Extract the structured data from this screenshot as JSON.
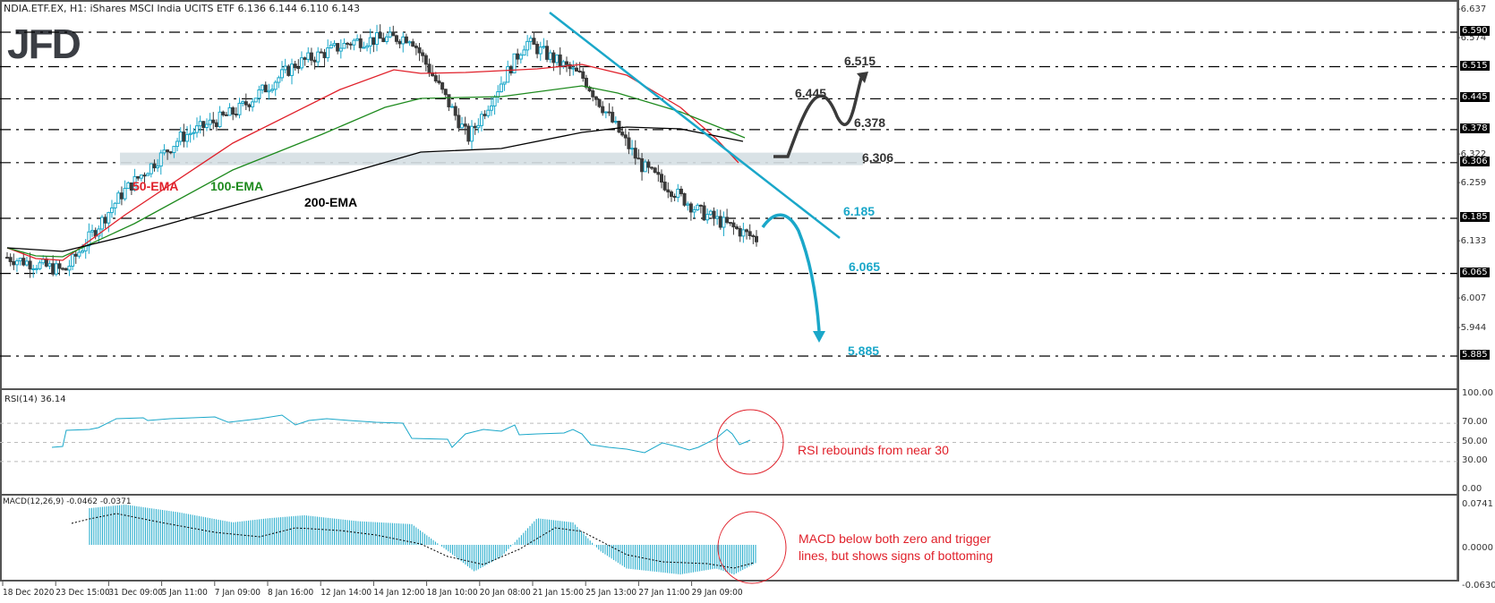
{
  "header": {
    "title": "NDIA.ETF.EX, H1:  iShares MSCI India UCITS ETF  6.136 6.144 6.110 6.143",
    "logo": "JFD"
  },
  "price_axis": {
    "ticks": [
      "6.637",
      "6.574",
      "6.322",
      "6.259",
      "6.133",
      "6.007",
      "5.944"
    ],
    "tags": [
      "6.590",
      "6.515",
      "6.445",
      "6.378",
      "6.306",
      "6.185",
      "6.065",
      "5.885"
    ]
  },
  "annotations": {
    "ema50": "50-EMA",
    "ema100": "100-EMA",
    "ema200": "200-EMA",
    "levels": {
      "l6515": "6.515",
      "l6445": "6.445",
      "l6378": "6.378",
      "l6306": "6.306",
      "l6185": "6.185",
      "l6065": "6.065",
      "l5885": "5.885"
    },
    "rsi_note": "RSI rebounds from near 30",
    "macd_note_1": "MACD below both zero and trigger",
    "macd_note_2": "lines, but shows signs of bottoming"
  },
  "rsi": {
    "label": "RSI(14) 36.14",
    "ticks": [
      "100.00",
      "70.00",
      "50.00",
      "30.00",
      "0.00"
    ]
  },
  "macd": {
    "label": "MACD(12,26,9) -0.0462 -0.0371",
    "ticks": [
      "0.0741",
      "0.0000",
      "-0.0630"
    ]
  },
  "dates": [
    "18 Dec 2020",
    "23 Dec 15:00",
    "31 Dec 09:00",
    "5 Jan 11:00",
    "7 Jan 09:00",
    "8 Jan 16:00",
    "12 Jan 14:00",
    "14 Jan 12:00",
    "18 Jan 10:00",
    "20 Jan 08:00",
    "21 Jan 15:00",
    "25 Jan 13:00",
    "27 Jan 11:00",
    "29 Jan 09:00"
  ],
  "colors": {
    "bull": "#1aa7c9",
    "bear": "#3a3a3a",
    "ema50": "#e0202a",
    "ema100": "#1e8a1e",
    "ema200": "#000000",
    "trend": "#1aa7c9",
    "zone": "#d5dfe3",
    "note": "#e0202a"
  },
  "chart_data": [
    {
      "type": "candlestick",
      "title": "NDIA.ETF.EX, H1: iShares MSCI India UCITS ETF",
      "ohlc_last": {
        "open": 6.136,
        "high": 6.144,
        "low": 6.11,
        "close": 6.143
      },
      "ylim": [
        5.85,
        6.65
      ],
      "y_ticks": [
        6.637,
        6.574,
        6.322,
        6.259,
        6.133,
        6.007,
        5.944
      ],
      "horizontal_levels": [
        6.59,
        6.515,
        6.445,
        6.378,
        6.306,
        6.185,
        6.065,
        5.885
      ],
      "support_zone": [
        6.295,
        6.322
      ],
      "x": [
        "18 Dec 2020",
        "23 Dec 15:00",
        "31 Dec 09:00",
        "5 Jan 11:00",
        "7 Jan 09:00",
        "8 Jan 16:00",
        "12 Jan 14:00",
        "14 Jan 12:00",
        "18 Jan 10:00",
        "20 Jan 08:00",
        "21 Jan 15:00",
        "25 Jan 13:00",
        "27 Jan 11:00",
        "29 Jan 09:00"
      ],
      "approx_close_path": [
        6.1,
        6.07,
        6.24,
        6.36,
        6.42,
        6.52,
        6.57,
        6.58,
        6.36,
        6.57,
        6.49,
        6.3,
        6.2,
        6.14
      ],
      "series": [
        {
          "name": "50-EMA",
          "color": "#e0202a"
        },
        {
          "name": "100-EMA",
          "color": "#1e8a1e"
        },
        {
          "name": "200-EMA",
          "color": "#000000"
        }
      ],
      "annotations": [
        "downtrend line from 6.637 peak",
        "bullish path 6.306 -> 6.445 -> 6.378 -> 6.515",
        "bearish path 6.185 -> 6.065 -> 5.885"
      ]
    },
    {
      "type": "line",
      "title": "RSI(14) 36.14",
      "ylim": [
        0,
        100
      ],
      "y_ticks": [
        100,
        70,
        50,
        30,
        0
      ],
      "levels": [
        70,
        50,
        30
      ],
      "last_value": 36.14
    },
    {
      "type": "bar",
      "title": "MACD(12,26,9) -0.0462 -0.0371",
      "ylim": [
        -0.063,
        0.0741
      ],
      "y_ticks": [
        0.0741,
        0.0,
        -0.063
      ],
      "macd": -0.0462,
      "signal": -0.0371
    }
  ]
}
